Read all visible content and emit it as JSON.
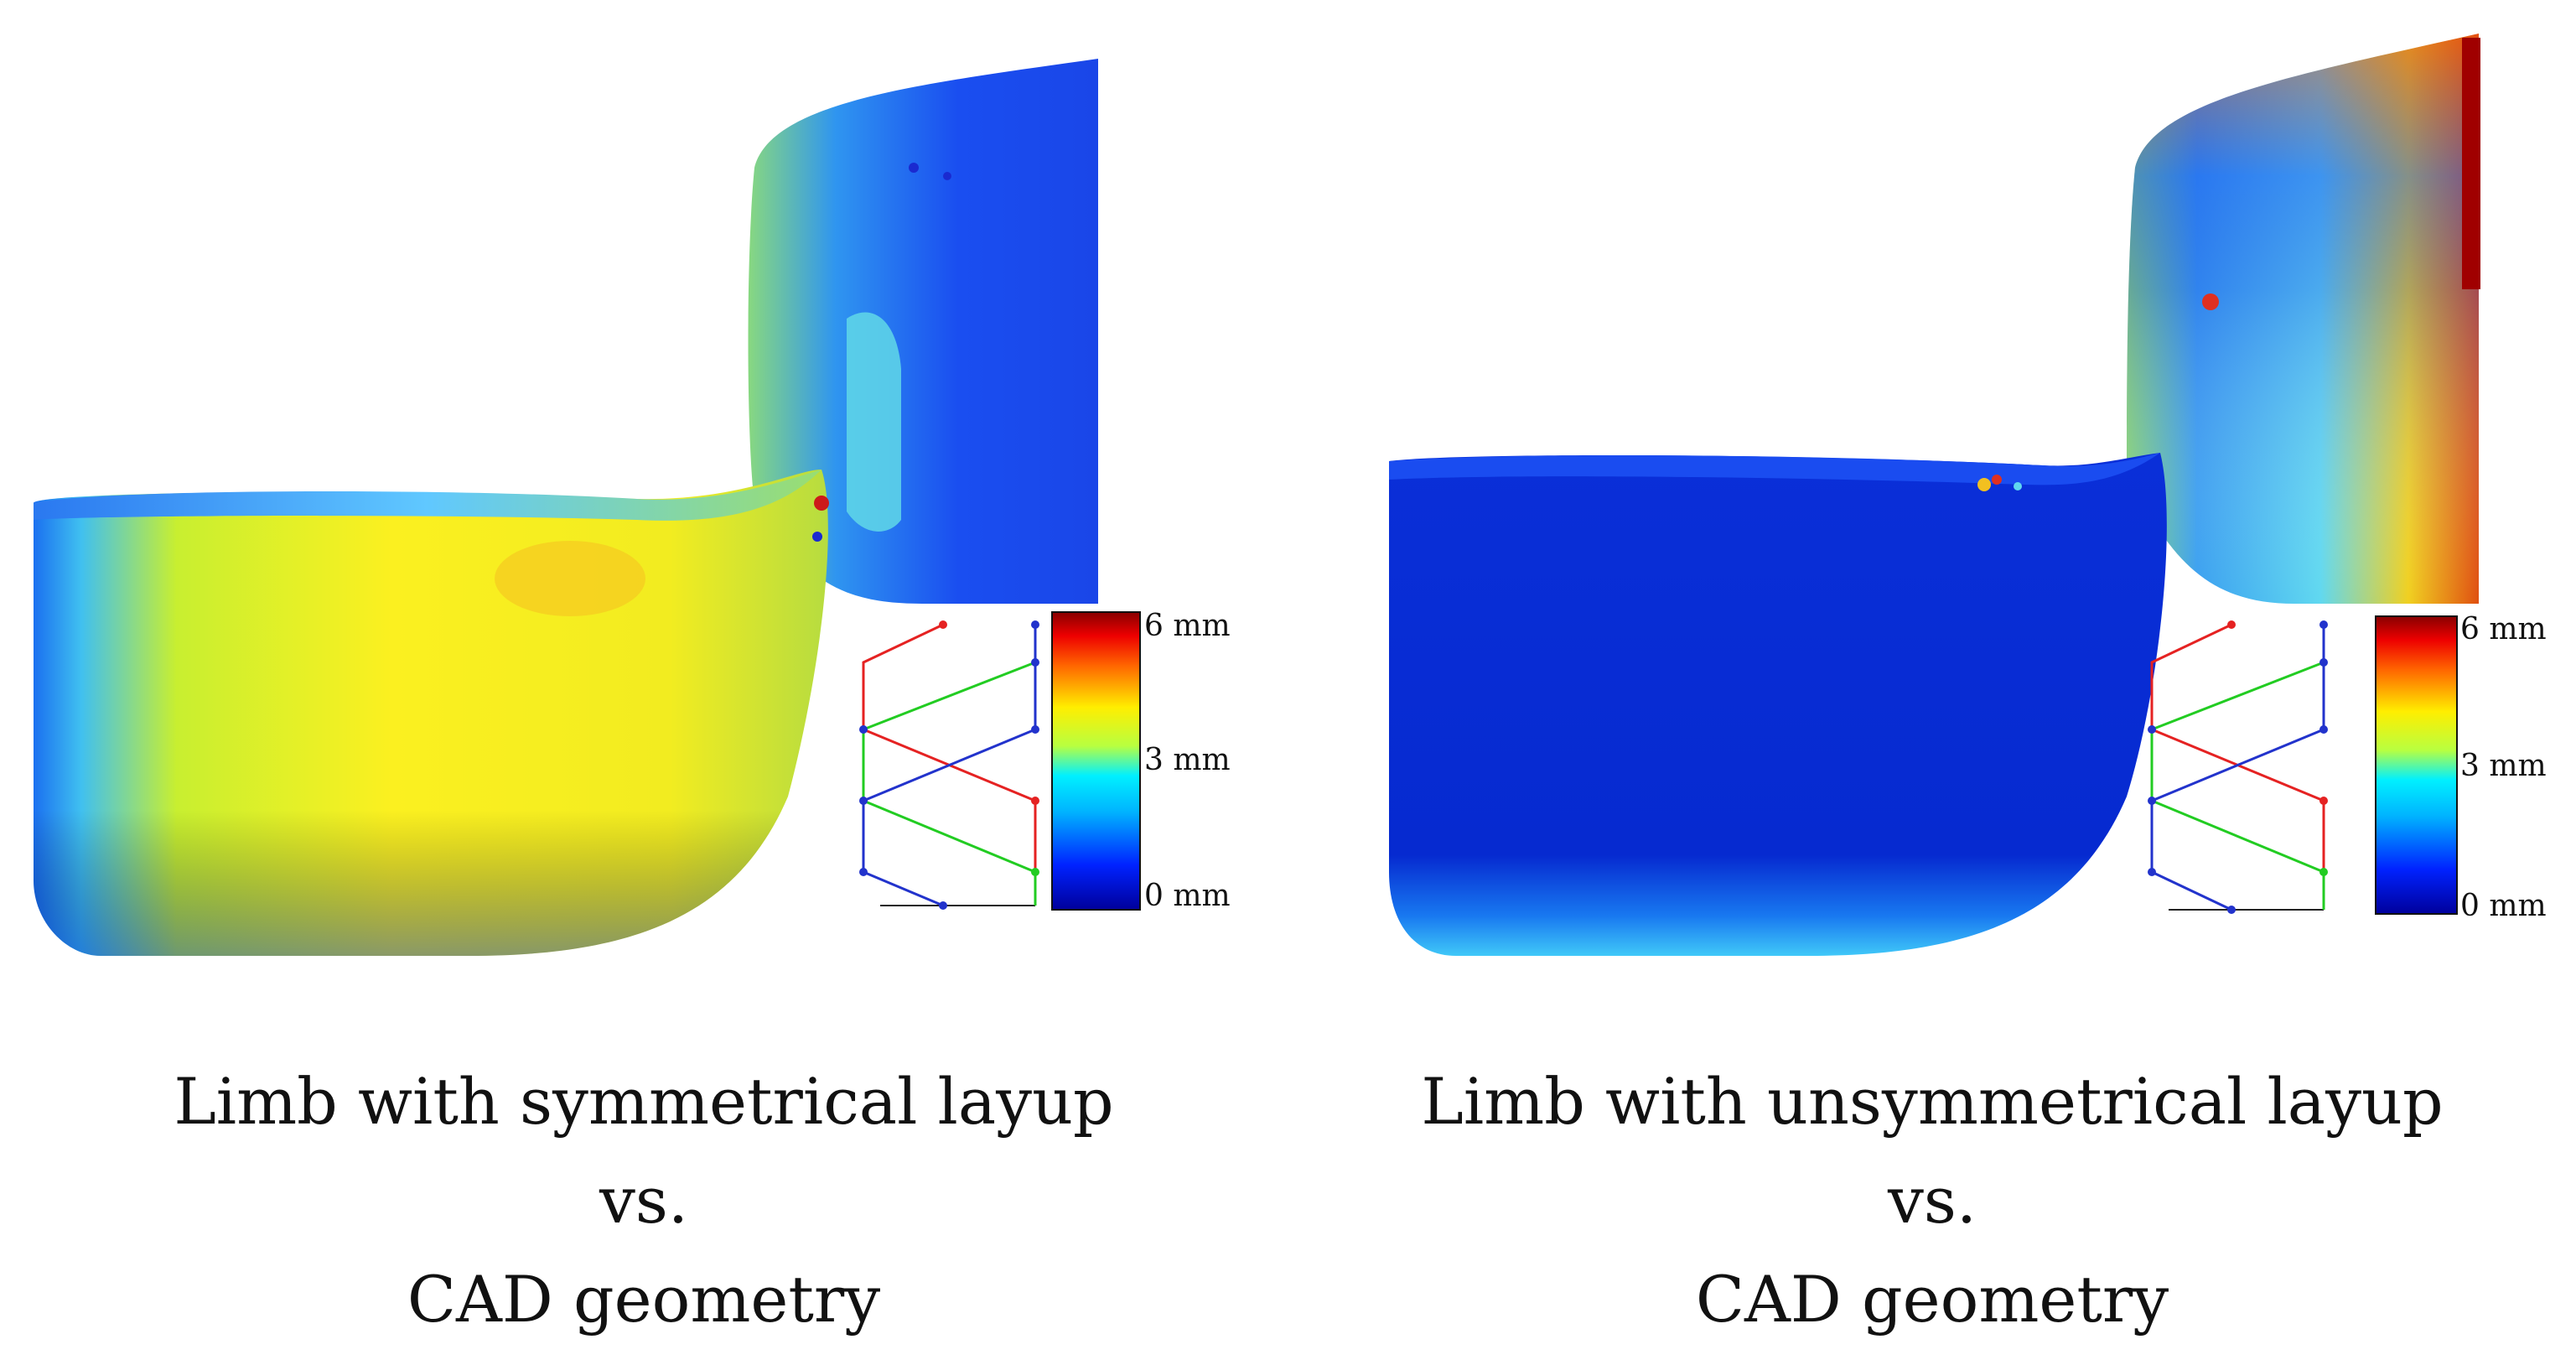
{
  "panels": [
    {
      "caption": [
        "Limb with symmetrical layup",
        "vs.",
        "CAD geometry"
      ],
      "colorbar": {
        "min_label": "0 mm",
        "mid_label": "3 mm",
        "max_label": "6 mm"
      },
      "dominant_deviation": "approximately 3–4 mm (yellow)"
    },
    {
      "caption": [
        "Limb with unsymmetrical layup",
        "vs.",
        "CAD geometry"
      ],
      "colorbar": {
        "min_label": "0 mm",
        "mid_label": "3 mm",
        "max_label": "6 mm"
      },
      "dominant_deviation": "approximately 0–1 mm (blue)"
    }
  ],
  "colors": {
    "deep_blue": "#00009b",
    "blue": "#0033ff",
    "cyan": "#00e5ff",
    "yellow": "#f2f200",
    "orange": "#ff9900",
    "red": "#b30000",
    "layup_red": "#e52222",
    "layup_green": "#22cc22",
    "layup_blue": "#2233cc"
  }
}
